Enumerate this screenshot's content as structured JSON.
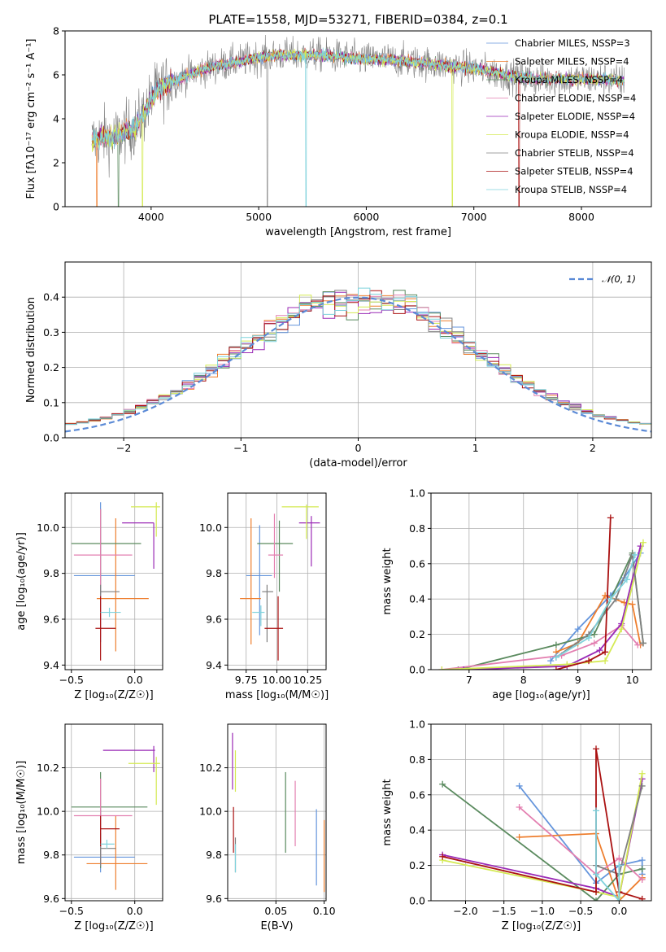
{
  "colors": [
    "#6495dc",
    "#ee7e2e",
    "#5a8a5e",
    "#e37fb0",
    "#9a2ab6",
    "#d4ea52",
    "#808080",
    "#aa1111",
    "#7fd2dc"
  ],
  "chart_data": [
    {
      "id": "spectrum",
      "type": "line",
      "title": "PLATE=1558, MJD=53271, FIBERID=0384, z=0.1",
      "xlabel": "wavelength [Angstrom, rest frame]",
      "ylabel": "Flux [fλ10⁻¹⁷ erg cm⁻² s⁻¹ A⁻¹]",
      "xlim": [
        3200,
        8650
      ],
      "ylim": [
        0,
        8
      ],
      "xticks": [
        "4000",
        "5000",
        "6000",
        "7000",
        "8000"
      ],
      "yticks": [
        "0",
        "2",
        "4",
        "6",
        "8"
      ],
      "legend_placement": "right",
      "series": [
        {
          "name": "Chabrier MILES, NSSP=3"
        },
        {
          "name": "Salpeter MILES, NSSP=4"
        },
        {
          "name": "Kroupa MILES, NSSP=4"
        },
        {
          "name": "Chabrier ELODIE, NSSP=4"
        },
        {
          "name": "Salpeter ELODIE, NSSP=4"
        },
        {
          "name": "Kroupa ELODIE, NSSP=4"
        },
        {
          "name": "Chabrier STELIB, NSSP=4"
        },
        {
          "name": "Salpeter STELIB, NSSP=4"
        },
        {
          "name": "Kroupa STELIB, NSSP=4"
        }
      ],
      "envelope": {
        "x": [
          3450,
          3550,
          3650,
          3750,
          3850,
          3950,
          4050,
          4200,
          4400,
          4600,
          4800,
          5000,
          5200,
          5400,
          5600,
          5800,
          6000,
          6200,
          6400,
          6600,
          6800,
          7000,
          7200,
          7400,
          7600,
          7800,
          8000,
          8200,
          8400
        ],
        "y": [
          3.0,
          3.2,
          3.1,
          3.4,
          3.6,
          4.4,
          5.3,
          5.7,
          6.1,
          6.4,
          6.6,
          6.8,
          6.9,
          6.9,
          6.9,
          6.8,
          6.7,
          6.7,
          6.6,
          6.5,
          6.4,
          6.3,
          6.1,
          5.9,
          5.8,
          5.8,
          5.8,
          5.8,
          5.7
        ]
      },
      "grid": false
    },
    {
      "id": "residuals",
      "type": "histogram",
      "xlabel": "(data-model)/error",
      "ylabel": "Normed distribution",
      "xlim": [
        -2.5,
        2.5
      ],
      "ylim": [
        0,
        0.5
      ],
      "xticks": [
        "−2",
        "−1",
        "0",
        "1",
        "2"
      ],
      "yticks": [
        "0.0",
        "0.1",
        "0.2",
        "0.3",
        "0.4"
      ],
      "bin_width": 0.1,
      "reference_curve": "𝒩(0, 1)",
      "legend_placement": "top-right",
      "grid": true
    },
    {
      "id": "age-vs-Z",
      "type": "errorbar",
      "xlabel": "Z [log₁₀(Z/Z☉)]",
      "ylabel": "age  [log₁₀(age/yr)]",
      "xlim": [
        -0.55,
        0.22
      ],
      "ylim": [
        9.38,
        10.15
      ],
      "xticks": [
        "−0.5",
        "0.0"
      ],
      "yticks": [
        "9.4",
        "9.6",
        "9.8",
        "10.0"
      ],
      "points": [
        {
          "x": -0.27,
          "xe": [
            -0.48,
            0.0
          ],
          "y": 9.79,
          "ye": [
            9.5,
            10.11
          ]
        },
        {
          "x": -0.15,
          "xe": [
            -0.3,
            0.11
          ],
          "y": 9.69,
          "ye": [
            9.46,
            10.04
          ]
        },
        {
          "x": -0.27,
          "xe": [
            -0.5,
            0.05
          ],
          "y": 9.93,
          "ye": [
            9.71,
            10.08
          ]
        },
        {
          "x": -0.27,
          "xe": [
            -0.48,
            -0.02
          ],
          "y": 9.88,
          "ye": [
            9.52,
            10.08
          ]
        },
        {
          "x": 0.15,
          "xe": [
            -0.1,
            0.15
          ],
          "y": 10.02,
          "ye": [
            9.82,
            10.02
          ]
        },
        {
          "x": 0.17,
          "xe": [
            -0.03,
            0.2
          ],
          "y": 10.09,
          "ye": [
            9.96,
            10.11
          ]
        },
        {
          "x": -0.27,
          "xe": [
            -0.27,
            -0.12
          ],
          "y": 9.72,
          "ye": [
            9.7,
            9.75
          ]
        },
        {
          "x": -0.27,
          "xe": [
            -0.31,
            -0.15
          ],
          "y": 9.56,
          "ye": [
            9.42,
            9.7
          ]
        },
        {
          "x": -0.2,
          "xe": [
            -0.27,
            -0.11
          ],
          "y": 9.63,
          "ye": [
            9.61,
            9.65
          ]
        }
      ],
      "grid": true
    },
    {
      "id": "age-vs-mass",
      "type": "errorbar",
      "xlabel": "mass [log₁₀(M/M☉)]",
      "ylabel": "",
      "xlim": [
        9.6,
        10.4
      ],
      "ylim": [
        9.38,
        10.15
      ],
      "xticks": [
        "9.75",
        "10.00",
        "10.25"
      ],
      "yticks": [
        "9.4",
        "9.6",
        "9.8",
        "10.0"
      ],
      "points": [
        {
          "x": 9.86,
          "xe": [
            9.75,
            9.96
          ],
          "y": 9.79,
          "ye": [
            9.53,
            10.01
          ]
        },
        {
          "x": 9.79,
          "xe": [
            9.7,
            9.87
          ],
          "y": 9.69,
          "ye": [
            9.49,
            10.04
          ]
        },
        {
          "x": 10.02,
          "xe": [
            9.84,
            10.13
          ],
          "y": 9.93,
          "ye": [
            9.72,
            10.03
          ]
        },
        {
          "x": 9.98,
          "xe": [
            9.93,
            10.05
          ],
          "y": 9.88,
          "ye": [
            9.78,
            10.06
          ]
        },
        {
          "x": 10.28,
          "xe": [
            10.18,
            10.35
          ],
          "y": 10.02,
          "ye": [
            9.83,
            10.05
          ]
        },
        {
          "x": 10.24,
          "xe": [
            10.04,
            10.34
          ],
          "y": 10.09,
          "ye": [
            9.95,
            10.1
          ]
        },
        {
          "x": 9.92,
          "xe": [
            9.88,
            9.97
          ],
          "y": 9.72,
          "ye": [
            9.5,
            9.75
          ]
        },
        {
          "x": 10.01,
          "xe": [
            9.9,
            10.05
          ],
          "y": 9.56,
          "ye": [
            9.42,
            9.7
          ]
        },
        {
          "x": 9.87,
          "xe": [
            9.8,
            9.9
          ],
          "y": 9.63,
          "ye": [
            9.57,
            9.66
          ]
        }
      ],
      "grid": true
    },
    {
      "id": "weight-vs-age",
      "type": "line",
      "xlabel": "age  [log₁₀(age/yr)]",
      "ylabel": "mass weight",
      "xlim": [
        6.3,
        10.35
      ],
      "ylim": [
        0,
        1
      ],
      "xticks": [
        "7",
        "8",
        "9",
        "10"
      ],
      "yticks": [
        "0.0",
        "0.2",
        "0.4",
        "0.6",
        "0.8",
        "1.0"
      ],
      "series": [
        {
          "x": [
            8.5,
            9.0,
            9.6,
            9.85,
            10.15
          ],
          "y": [
            0.05,
            0.23,
            0.42,
            0.52,
            0.66
          ]
        },
        {
          "x": [
            8.6,
            9.0,
            9.5,
            9.85,
            10.0,
            10.15
          ],
          "y": [
            0.1,
            0.15,
            0.42,
            0.38,
            0.37,
            0.14
          ]
        },
        {
          "x": [
            6.8,
            8.6,
            9.3,
            10.0,
            10.2
          ],
          "y": [
            0.0,
            0.14,
            0.2,
            0.66,
            0.15
          ]
        },
        {
          "x": [
            6.5,
            8.7,
            9.3,
            9.8,
            10.1
          ],
          "y": [
            0.0,
            0.08,
            0.15,
            0.25,
            0.14
          ]
        },
        {
          "x": [
            6.9,
            8.8,
            9.4,
            9.8,
            10.15
          ],
          "y": [
            0.0,
            0.02,
            0.11,
            0.26,
            0.7
          ]
        },
        {
          "x": [
            6.5,
            8.8,
            9.5,
            9.8,
            10.2
          ],
          "y": [
            0.0,
            0.03,
            0.05,
            0.23,
            0.72
          ]
        },
        {
          "x": [
            8.6,
            9.2,
            9.7,
            10.0,
            10.2
          ],
          "y": [
            0.07,
            0.2,
            0.4,
            0.65,
            0.15
          ]
        },
        {
          "x": [
            8.6,
            9.2,
            9.5,
            9.6
          ],
          "y": [
            0.0,
            0.05,
            0.1,
            0.86
          ]
        },
        {
          "x": [
            8.6,
            9.2,
            9.6,
            9.9,
            10.05
          ],
          "y": [
            0.07,
            0.18,
            0.4,
            0.51,
            0.65
          ]
        }
      ],
      "grid": true
    },
    {
      "id": "mass-vs-Z",
      "type": "errorbar",
      "xlabel": "Z [log₁₀(Z/Z☉)]",
      "ylabel": "mass [log₁₀(M/M☉)]",
      "xlim": [
        -0.55,
        0.22
      ],
      "ylim": [
        9.59,
        10.4
      ],
      "xticks": [
        "−0.5",
        "0.0"
      ],
      "yticks": [
        "9.6",
        "9.8",
        "10.0",
        "10.2"
      ],
      "points": [
        {
          "x": -0.27,
          "xe": [
            -0.48,
            0.0
          ],
          "y": 9.79,
          "ye": [
            9.72,
            10.01
          ]
        },
        {
          "x": -0.15,
          "xe": [
            -0.38,
            0.1
          ],
          "y": 9.76,
          "ye": [
            9.64,
            9.98
          ]
        },
        {
          "x": -0.27,
          "xe": [
            -0.5,
            0.1
          ],
          "y": 10.02,
          "ye": [
            9.74,
            10.18
          ]
        },
        {
          "x": -0.27,
          "xe": [
            -0.48,
            -0.02
          ],
          "y": 9.98,
          "ye": [
            9.75,
            10.15
          ]
        },
        {
          "x": 0.15,
          "xe": [
            -0.25,
            0.16
          ],
          "y": 10.28,
          "ye": [
            10.18,
            10.3
          ]
        },
        {
          "x": 0.17,
          "xe": [
            -0.05,
            0.2
          ],
          "y": 10.22,
          "ye": [
            10.03,
            10.25
          ]
        },
        {
          "x": -0.27,
          "xe": [
            -0.27,
            -0.15
          ],
          "y": 9.83,
          "ye": [
            9.75,
            9.9
          ]
        },
        {
          "x": -0.27,
          "xe": [
            -0.27,
            -0.12
          ],
          "y": 9.92,
          "ye": [
            9.84,
            9.98
          ]
        },
        {
          "x": -0.22,
          "xe": [
            -0.27,
            -0.16
          ],
          "y": 9.85,
          "ye": [
            9.83,
            9.87
          ]
        }
      ],
      "grid": true
    },
    {
      "id": "mass-vs-EBV",
      "type": "errorbar",
      "xlabel": "E(B-V)",
      "ylabel": "",
      "xlim": [
        0.0,
        0.102
      ],
      "ylim": [
        9.59,
        10.4
      ],
      "xticks": [
        "0.05",
        "0.10"
      ],
      "yticks": [
        "9.6",
        "9.8",
        "10.0",
        "10.2"
      ],
      "points": [
        {
          "x": 0.092,
          "xe": [
            0.092,
            0.092
          ],
          "y": 9.84,
          "ye": [
            9.66,
            10.01
          ]
        },
        {
          "x": 0.1,
          "xe": [
            0.1,
            0.1
          ],
          "y": 9.8,
          "ye": [
            9.63,
            9.96
          ]
        },
        {
          "x": 0.06,
          "xe": [
            0.06,
            0.06
          ],
          "y": 10.0,
          "ye": [
            9.81,
            10.18
          ]
        },
        {
          "x": 0.07,
          "xe": [
            0.07,
            0.07
          ],
          "y": 9.98,
          "ye": [
            9.84,
            10.14
          ]
        },
        {
          "x": 0.005,
          "xe": [
            0.005,
            0.005
          ],
          "y": 10.25,
          "ye": [
            10.1,
            10.36
          ]
        },
        {
          "x": 0.008,
          "xe": [
            0.008,
            0.008
          ],
          "y": 10.21,
          "ye": [
            10.09,
            10.28
          ]
        },
        {
          "x": 0.008,
          "xe": [
            0.008,
            0.008
          ],
          "y": 9.82,
          "ye": [
            9.72,
            9.88
          ]
        },
        {
          "x": 0.006,
          "xe": [
            0.006,
            0.006
          ],
          "y": 9.91,
          "ye": [
            9.81,
            10.02
          ]
        },
        {
          "x": 0.008,
          "xe": [
            0.008,
            0.008
          ],
          "y": 9.8,
          "ye": [
            9.72,
            9.85
          ]
        }
      ],
      "grid": true
    },
    {
      "id": "weight-vs-Z",
      "type": "line",
      "xlabel": "Z [log₁₀(Z/Z☉)]",
      "ylabel": "mass weight",
      "xlim": [
        -2.45,
        0.42
      ],
      "ylim": [
        0,
        1
      ],
      "xticks": [
        "−2.0",
        "−1.5",
        "−1.0",
        "−0.5",
        "0.0"
      ],
      "yticks": [
        "0.0",
        "0.2",
        "0.4",
        "0.6",
        "0.8",
        "1.0"
      ],
      "series": [
        {
          "x": [
            -1.3,
            -0.3,
            0.0,
            0.3,
            0.3
          ],
          "y": [
            0.65,
            0.1,
            0.2,
            0.23,
            0.15
          ]
        },
        {
          "x": [
            -1.3,
            -0.3,
            0.0,
            0.3,
            0.3
          ],
          "y": [
            0.36,
            0.38,
            0.0,
            0.13,
            0.13
          ]
        },
        {
          "x": [
            -2.3,
            -0.3,
            0.0,
            0.3
          ],
          "y": [
            0.66,
            0.0,
            0.15,
            0.18
          ]
        },
        {
          "x": [
            -1.3,
            -0.3,
            0.0,
            0.3
          ],
          "y": [
            0.53,
            0.15,
            0.24,
            0.12
          ]
        },
        {
          "x": [
            -2.3,
            -0.3,
            0.0,
            0.3
          ],
          "y": [
            0.26,
            0.07,
            0.02,
            0.69
          ]
        },
        {
          "x": [
            -2.3,
            -0.3,
            0.0,
            0.3
          ],
          "y": [
            0.23,
            0.05,
            0.02,
            0.72
          ]
        },
        {
          "x": [
            -0.3,
            0.0,
            0.3
          ],
          "y": [
            0.2,
            0.15,
            0.65
          ]
        },
        {
          "x": [
            -2.3,
            -0.3,
            -0.3,
            0.0,
            0.3
          ],
          "y": [
            0.25,
            0.05,
            0.86,
            0.05,
            0.01
          ]
        },
        {
          "x": [
            -0.3,
            -0.3,
            0.0,
            0.0
          ],
          "y": [
            0.51,
            0.15,
            0.0,
            0.2
          ]
        }
      ],
      "grid": true
    }
  ]
}
